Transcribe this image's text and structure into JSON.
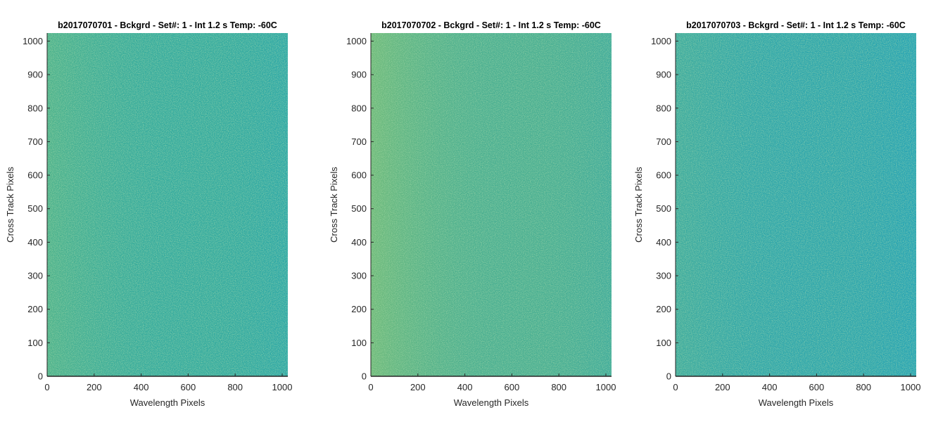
{
  "chart_data": [
    {
      "type": "heatmap",
      "title": "b2017070701 - Bckgrd - Set#: 1 - Int 1.2 s Temp: -60C",
      "xlabel": "Wavelength Pixels",
      "ylabel": "Cross Track Pixels",
      "xlim": [
        0,
        1024
      ],
      "ylim": [
        0,
        1024
      ],
      "xticks": [
        0,
        200,
        400,
        600,
        800,
        1000
      ],
      "yticks": [
        0,
        100,
        200,
        300,
        400,
        500,
        600,
        700,
        800,
        900,
        1000
      ],
      "colormap": "parula",
      "base_color": "#35ab9f",
      "highlight_color": "#7cc16a",
      "shade_color": "#1ea2b8"
    },
    {
      "type": "heatmap",
      "title": "b2017070702 - Bckgrd - Set#: 1 - Int 1.2 s Temp: -60C",
      "xlabel": "Wavelength Pixels",
      "ylabel": "Cross Track Pixels",
      "xlim": [
        0,
        1024
      ],
      "ylim": [
        0,
        1024
      ],
      "xticks": [
        0,
        200,
        400,
        600,
        800,
        1000
      ],
      "yticks": [
        0,
        100,
        200,
        300,
        400,
        500,
        600,
        700,
        800,
        900,
        1000
      ],
      "colormap": "parula",
      "base_color": "#4aaf92",
      "highlight_color": "#8cc468",
      "shade_color": "#2ba4ad"
    },
    {
      "type": "heatmap",
      "title": "b2017070703 - Bckgrd - Set#: 1 - Int 1.2 s Temp: -60C",
      "xlabel": "Wavelength Pixels",
      "ylabel": "Cross Track Pixels",
      "xlim": [
        0,
        1024
      ],
      "ylim": [
        0,
        1024
      ],
      "xticks": [
        0,
        200,
        400,
        600,
        800,
        1000
      ],
      "yticks": [
        0,
        100,
        200,
        300,
        400,
        500,
        600,
        700,
        800,
        900,
        1000
      ],
      "colormap": "parula",
      "base_color": "#2ea6ac",
      "highlight_color": "#5cb684",
      "shade_color": "#169fc4"
    }
  ]
}
